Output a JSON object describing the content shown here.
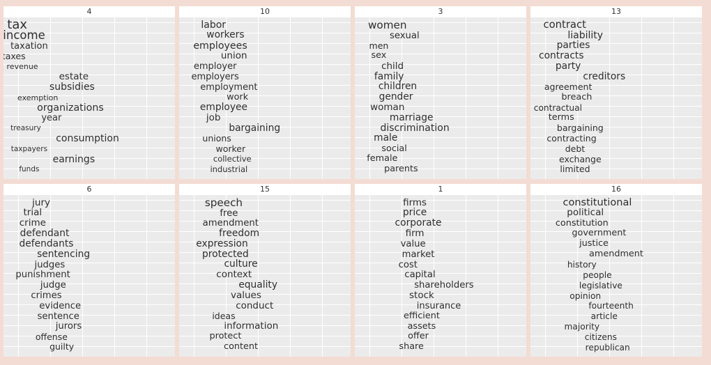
{
  "chart_data": {
    "type": "text",
    "grid": true,
    "facets": [
      {
        "label": "4",
        "words": [
          {
            "text": "tax",
            "x": 0.08,
            "weight": 1.0
          },
          {
            "text": "income",
            "x": 0.12,
            "weight": 0.85
          },
          {
            "text": "taxation",
            "x": 0.15,
            "weight": 0.5
          },
          {
            "text": "taxes",
            "x": 0.06,
            "weight": 0.45
          },
          {
            "text": "revenue",
            "x": 0.11,
            "weight": 0.3
          },
          {
            "text": "estate",
            "x": 0.41,
            "weight": 0.55
          },
          {
            "text": "subsidies",
            "x": 0.4,
            "weight": 0.6
          },
          {
            "text": "exemption",
            "x": 0.2,
            "weight": 0.3
          },
          {
            "text": "organizations",
            "x": 0.39,
            "weight": 0.62
          },
          {
            "text": "year",
            "x": 0.28,
            "weight": 0.5
          },
          {
            "text": "treasury",
            "x": 0.13,
            "weight": 0.25
          },
          {
            "text": "consumption",
            "x": 0.49,
            "weight": 0.6
          },
          {
            "text": "taxpayers",
            "x": 0.15,
            "weight": 0.25
          },
          {
            "text": "earnings",
            "x": 0.41,
            "weight": 0.6
          },
          {
            "text": "funds",
            "x": 0.15,
            "weight": 0.25
          }
        ]
      },
      {
        "label": "10",
        "words": [
          {
            "text": "labor",
            "x": 0.2,
            "weight": 0.6
          },
          {
            "text": "workers",
            "x": 0.27,
            "weight": 0.58
          },
          {
            "text": "employees",
            "x": 0.24,
            "weight": 0.62
          },
          {
            "text": "union",
            "x": 0.32,
            "weight": 0.55
          },
          {
            "text": "employer",
            "x": 0.21,
            "weight": 0.5
          },
          {
            "text": "employers",
            "x": 0.21,
            "weight": 0.5
          },
          {
            "text": "employment",
            "x": 0.29,
            "weight": 0.5
          },
          {
            "text": "work",
            "x": 0.34,
            "weight": 0.48
          },
          {
            "text": "employee",
            "x": 0.26,
            "weight": 0.58
          },
          {
            "text": "job",
            "x": 0.2,
            "weight": 0.55
          },
          {
            "text": "bargaining",
            "x": 0.44,
            "weight": 0.58
          },
          {
            "text": "unions",
            "x": 0.22,
            "weight": 0.45
          },
          {
            "text": "worker",
            "x": 0.3,
            "weight": 0.45
          },
          {
            "text": "collective",
            "x": 0.31,
            "weight": 0.35
          },
          {
            "text": "industrial",
            "x": 0.29,
            "weight": 0.35
          }
        ]
      },
      {
        "label": "3",
        "words": [
          {
            "text": "women",
            "x": 0.19,
            "weight": 0.72
          },
          {
            "text": "sexual",
            "x": 0.29,
            "weight": 0.52
          },
          {
            "text": "men",
            "x": 0.14,
            "weight": 0.45
          },
          {
            "text": "sex",
            "x": 0.14,
            "weight": 0.48
          },
          {
            "text": "child",
            "x": 0.22,
            "weight": 0.55
          },
          {
            "text": "family",
            "x": 0.2,
            "weight": 0.58
          },
          {
            "text": "children",
            "x": 0.25,
            "weight": 0.58
          },
          {
            "text": "gender",
            "x": 0.24,
            "weight": 0.58
          },
          {
            "text": "woman",
            "x": 0.19,
            "weight": 0.55
          },
          {
            "text": "marriage",
            "x": 0.33,
            "weight": 0.58
          },
          {
            "text": "discrimination",
            "x": 0.35,
            "weight": 0.6
          },
          {
            "text": "male",
            "x": 0.18,
            "weight": 0.58
          },
          {
            "text": "social",
            "x": 0.23,
            "weight": 0.48
          },
          {
            "text": "female",
            "x": 0.16,
            "weight": 0.48
          },
          {
            "text": "parents",
            "x": 0.27,
            "weight": 0.48
          }
        ]
      },
      {
        "label": "13",
        "words": [
          {
            "text": "contract",
            "x": 0.2,
            "weight": 0.68
          },
          {
            "text": "liability",
            "x": 0.32,
            "weight": 0.6
          },
          {
            "text": "parties",
            "x": 0.25,
            "weight": 0.58
          },
          {
            "text": "contracts",
            "x": 0.18,
            "weight": 0.58
          },
          {
            "text": "party",
            "x": 0.22,
            "weight": 0.58
          },
          {
            "text": "creditors",
            "x": 0.43,
            "weight": 0.58
          },
          {
            "text": "agreement",
            "x": 0.22,
            "weight": 0.45
          },
          {
            "text": "breach",
            "x": 0.27,
            "weight": 0.48
          },
          {
            "text": "contractual",
            "x": 0.16,
            "weight": 0.42
          },
          {
            "text": "terms",
            "x": 0.18,
            "weight": 0.48
          },
          {
            "text": "bargaining",
            "x": 0.29,
            "weight": 0.45
          },
          {
            "text": "contracting",
            "x": 0.24,
            "weight": 0.45
          },
          {
            "text": "debt",
            "x": 0.26,
            "weight": 0.45
          },
          {
            "text": "exchange",
            "x": 0.29,
            "weight": 0.45
          },
          {
            "text": "limited",
            "x": 0.26,
            "weight": 0.45
          }
        ]
      },
      {
        "label": "6",
        "words": [
          {
            "text": "jury",
            "x": 0.22,
            "weight": 0.55
          },
          {
            "text": "trial",
            "x": 0.17,
            "weight": 0.55
          },
          {
            "text": "crime",
            "x": 0.17,
            "weight": 0.55
          },
          {
            "text": "defendant",
            "x": 0.24,
            "weight": 0.58
          },
          {
            "text": "defendants",
            "x": 0.25,
            "weight": 0.58
          },
          {
            "text": "sentencing",
            "x": 0.35,
            "weight": 0.58
          },
          {
            "text": "judges",
            "x": 0.27,
            "weight": 0.52
          },
          {
            "text": "punishment",
            "x": 0.23,
            "weight": 0.52
          },
          {
            "text": "judge",
            "x": 0.29,
            "weight": 0.52
          },
          {
            "text": "crimes",
            "x": 0.25,
            "weight": 0.52
          },
          {
            "text": "evidence",
            "x": 0.33,
            "weight": 0.52
          },
          {
            "text": "sentence",
            "x": 0.32,
            "weight": 0.52
          },
          {
            "text": "jurors",
            "x": 0.38,
            "weight": 0.52
          },
          {
            "text": "offense",
            "x": 0.28,
            "weight": 0.45
          },
          {
            "text": "guilty",
            "x": 0.34,
            "weight": 0.45
          }
        ]
      },
      {
        "label": "15",
        "words": [
          {
            "text": "speech",
            "x": 0.26,
            "weight": 0.72
          },
          {
            "text": "free",
            "x": 0.29,
            "weight": 0.52
          },
          {
            "text": "amendment",
            "x": 0.3,
            "weight": 0.52
          },
          {
            "text": "freedom",
            "x": 0.35,
            "weight": 0.58
          },
          {
            "text": "expression",
            "x": 0.25,
            "weight": 0.58
          },
          {
            "text": "protected",
            "x": 0.27,
            "weight": 0.58
          },
          {
            "text": "culture",
            "x": 0.36,
            "weight": 0.58
          },
          {
            "text": "context",
            "x": 0.32,
            "weight": 0.55
          },
          {
            "text": "equality",
            "x": 0.46,
            "weight": 0.58
          },
          {
            "text": "values",
            "x": 0.39,
            "weight": 0.55
          },
          {
            "text": "conduct",
            "x": 0.44,
            "weight": 0.55
          },
          {
            "text": "ideas",
            "x": 0.26,
            "weight": 0.45
          },
          {
            "text": "information",
            "x": 0.42,
            "weight": 0.55
          },
          {
            "text": "protect",
            "x": 0.27,
            "weight": 0.48
          },
          {
            "text": "content",
            "x": 0.36,
            "weight": 0.48
          }
        ]
      },
      {
        "label": "1",
        "words": [
          {
            "text": "firms",
            "x": 0.35,
            "weight": 0.55
          },
          {
            "text": "price",
            "x": 0.35,
            "weight": 0.58
          },
          {
            "text": "corporate",
            "x": 0.37,
            "weight": 0.58
          },
          {
            "text": "firm",
            "x": 0.35,
            "weight": 0.55
          },
          {
            "text": "value",
            "x": 0.34,
            "weight": 0.52
          },
          {
            "text": "market",
            "x": 0.37,
            "weight": 0.52
          },
          {
            "text": "cost",
            "x": 0.31,
            "weight": 0.52
          },
          {
            "text": "capital",
            "x": 0.38,
            "weight": 0.52
          },
          {
            "text": "shareholders",
            "x": 0.52,
            "weight": 0.52
          },
          {
            "text": "stock",
            "x": 0.39,
            "weight": 0.55
          },
          {
            "text": "insurance",
            "x": 0.49,
            "weight": 0.5
          },
          {
            "text": "efficient",
            "x": 0.39,
            "weight": 0.48
          },
          {
            "text": "assets",
            "x": 0.39,
            "weight": 0.48
          },
          {
            "text": "offer",
            "x": 0.37,
            "weight": 0.48
          },
          {
            "text": "share",
            "x": 0.33,
            "weight": 0.48
          }
        ]
      },
      {
        "label": "16",
        "words": [
          {
            "text": "constitutional",
            "x": 0.39,
            "weight": 0.65
          },
          {
            "text": "political",
            "x": 0.32,
            "weight": 0.55
          },
          {
            "text": "constitution",
            "x": 0.3,
            "weight": 0.48
          },
          {
            "text": "government",
            "x": 0.4,
            "weight": 0.48
          },
          {
            "text": "justice",
            "x": 0.37,
            "weight": 0.48
          },
          {
            "text": "amendment",
            "x": 0.5,
            "weight": 0.48
          },
          {
            "text": "history",
            "x": 0.3,
            "weight": 0.42
          },
          {
            "text": "people",
            "x": 0.39,
            "weight": 0.42
          },
          {
            "text": "legislative",
            "x": 0.41,
            "weight": 0.42
          },
          {
            "text": "opinion",
            "x": 0.32,
            "weight": 0.42
          },
          {
            "text": "fourteenth",
            "x": 0.47,
            "weight": 0.42
          },
          {
            "text": "article",
            "x": 0.43,
            "weight": 0.42
          },
          {
            "text": "majority",
            "x": 0.3,
            "weight": 0.42
          },
          {
            "text": "citizens",
            "x": 0.41,
            "weight": 0.42
          },
          {
            "text": "republican",
            "x": 0.45,
            "weight": 0.42
          }
        ]
      }
    ]
  }
}
